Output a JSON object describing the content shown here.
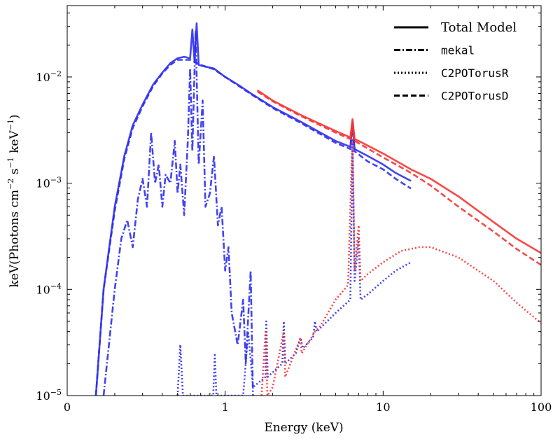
{
  "chart_data": {
    "type": "line",
    "xlabel": "Energy (keV)",
    "ylabel": "keV(Photons cm^-2 s^-1 keV^-1)",
    "xscale": "log",
    "yscale": "log",
    "xlim": [
      0.1,
      100
    ],
    "ylim": [
      1e-05,
      0.047
    ],
    "x_ticks": [
      {
        "value": 0.1,
        "label": "0"
      },
      {
        "value": 1,
        "label": "1"
      },
      {
        "value": 10,
        "label": "10"
      },
      {
        "value": 100,
        "label": "100"
      }
    ],
    "y_ticks": [
      {
        "value": 1e-05,
        "base": "10",
        "exp": "−5"
      },
      {
        "value": 0.0001,
        "base": "10",
        "exp": "−4"
      },
      {
        "value": 0.001,
        "base": "10",
        "exp": "−3"
      },
      {
        "value": 0.01,
        "base": "10",
        "exp": "−2"
      }
    ],
    "grid": false,
    "legend_placement": "top-right",
    "legend": [
      {
        "label": "Total Model",
        "style": "solid"
      },
      {
        "label": "mekal",
        "style": "dashdot"
      },
      {
        "label": "C2POTorusR",
        "style": "dotted"
      },
      {
        "label": "C2POTorusD",
        "style": "dashed"
      }
    ],
    "colors": {
      "blue": "#2f2ff0",
      "red": "#f53535"
    },
    "series": [
      {
        "component": "Total Model",
        "color": "blue",
        "style": "solid",
        "points": [
          [
            0.152,
            1e-05
          ],
          [
            0.17,
            0.0001
          ],
          [
            0.2,
            0.0006
          ],
          [
            0.23,
            0.0018
          ],
          [
            0.26,
            0.0035
          ],
          [
            0.3,
            0.0055
          ],
          [
            0.35,
            0.0085
          ],
          [
            0.4,
            0.011
          ],
          [
            0.45,
            0.0135
          ],
          [
            0.5,
            0.015
          ],
          [
            0.55,
            0.0155
          ],
          [
            0.6,
            0.015
          ],
          [
            0.62,
            0.028
          ],
          [
            0.64,
            0.014
          ],
          [
            0.66,
            0.032
          ],
          [
            0.68,
            0.013
          ],
          [
            0.75,
            0.0125
          ],
          [
            0.85,
            0.012
          ],
          [
            1.0,
            0.01
          ],
          [
            1.2,
            0.0085
          ],
          [
            1.5,
            0.0068
          ],
          [
            2,
            0.0052
          ],
          [
            3,
            0.0038
          ],
          [
            4,
            0.003
          ],
          [
            5,
            0.0025
          ],
          [
            6.2,
            0.0022
          ],
          [
            6.4,
            0.0038
          ],
          [
            6.6,
            0.0021
          ],
          [
            7,
            0.002
          ],
          [
            8,
            0.0018
          ],
          [
            10,
            0.0015
          ],
          [
            12,
            0.00125
          ],
          [
            15,
            0.00105
          ]
        ]
      },
      {
        "component": "C2POTorusD",
        "color": "blue",
        "style": "dashed",
        "points": [
          [
            0.152,
            1e-05
          ],
          [
            0.17,
            0.0001
          ],
          [
            0.2,
            0.00055
          ],
          [
            0.23,
            0.0017
          ],
          [
            0.26,
            0.0033
          ],
          [
            0.3,
            0.0053
          ],
          [
            0.35,
            0.0082
          ],
          [
            0.4,
            0.0108
          ],
          [
            0.45,
            0.013
          ],
          [
            0.5,
            0.0145
          ],
          [
            0.6,
            0.0145
          ],
          [
            0.7,
            0.013
          ],
          [
            0.85,
            0.0118
          ],
          [
            1.0,
            0.01
          ],
          [
            1.5,
            0.0067
          ],
          [
            2,
            0.0051
          ],
          [
            3,
            0.0037
          ],
          [
            5,
            0.0024
          ],
          [
            6.2,
            0.0021
          ],
          [
            6.4,
            0.0032
          ],
          [
            6.6,
            0.002
          ],
          [
            8,
            0.0016
          ],
          [
            10,
            0.00135
          ],
          [
            12,
            0.0011
          ],
          [
            15,
            0.00089
          ]
        ]
      },
      {
        "component": "mekal",
        "color": "blue",
        "style": "dashdot",
        "points": [
          [
            0.17,
            1e-05
          ],
          [
            0.2,
            0.0001
          ],
          [
            0.22,
            0.0003
          ],
          [
            0.24,
            0.00045
          ],
          [
            0.26,
            0.00025
          ],
          [
            0.28,
            0.0007
          ],
          [
            0.3,
            0.0011
          ],
          [
            0.32,
            0.0006
          ],
          [
            0.34,
            0.003
          ],
          [
            0.36,
            0.001
          ],
          [
            0.38,
            0.0015
          ],
          [
            0.4,
            0.0006
          ],
          [
            0.42,
            0.0012
          ],
          [
            0.45,
            0.001
          ],
          [
            0.48,
            0.0025
          ],
          [
            0.5,
            0.0008
          ],
          [
            0.52,
            0.0015
          ],
          [
            0.55,
            0.0005
          ],
          [
            0.58,
            0.0025
          ],
          [
            0.6,
            0.012
          ],
          [
            0.62,
            0.002
          ],
          [
            0.65,
            0.027
          ],
          [
            0.68,
            0.0015
          ],
          [
            0.72,
            0.006
          ],
          [
            0.75,
            0.0006
          ],
          [
            0.8,
            0.0008
          ],
          [
            0.85,
            0.0018
          ],
          [
            0.9,
            0.0004
          ],
          [
            0.95,
            0.0006
          ],
          [
            1.0,
            0.00015
          ],
          [
            1.05,
            0.00025
          ],
          [
            1.1,
            6e-05
          ],
          [
            1.2,
            3e-05
          ],
          [
            1.3,
            8e-05
          ],
          [
            1.35,
            2e-05
          ],
          [
            1.45,
            0.00015
          ],
          [
            1.5,
            1e-05
          ]
        ]
      },
      {
        "component": "C2POTorusR",
        "color": "blue",
        "style": "dotted",
        "points": [
          [
            0.5,
            1e-05
          ],
          [
            0.52,
            3e-05
          ],
          [
            0.54,
            1e-05
          ],
          [
            0.84,
            1e-05
          ],
          [
            0.86,
            2.5e-05
          ],
          [
            0.88,
            1e-05
          ],
          [
            1.3,
            1e-05
          ],
          [
            1.4,
            4e-05
          ],
          [
            1.5,
            1.2e-05
          ],
          [
            1.8,
            1.5e-05
          ],
          [
            1.82,
            5e-05
          ],
          [
            1.86,
            1.5e-05
          ],
          [
            2.3,
            2e-05
          ],
          [
            2.35,
            5e-05
          ],
          [
            2.4,
            2e-05
          ],
          [
            2.8,
            2.5e-05
          ],
          [
            3,
            3.5e-05
          ],
          [
            3.1,
            2.8e-05
          ],
          [
            3.6,
            3.5e-05
          ],
          [
            3.7,
            5e-05
          ],
          [
            3.8,
            4e-05
          ],
          [
            5,
            6e-05
          ],
          [
            6.2,
            8e-05
          ],
          [
            6.4,
            0.0025
          ],
          [
            6.6,
            0.00012
          ],
          [
            7,
            0.0003
          ],
          [
            7.2,
            8e-05
          ],
          [
            8,
            9e-05
          ],
          [
            10,
            0.00012
          ],
          [
            12,
            0.00015
          ],
          [
            15,
            0.00018
          ]
        ]
      },
      {
        "component": "Total Model",
        "color": "red",
        "style": "solid",
        "points": [
          [
            1.6,
            0.0075
          ],
          [
            2,
            0.006
          ],
          [
            3,
            0.0044
          ],
          [
            5,
            0.0031
          ],
          [
            6.2,
            0.0027
          ],
          [
            6.4,
            0.004
          ],
          [
            6.6,
            0.0026
          ],
          [
            7,
            0.0025
          ],
          [
            10,
            0.0019
          ],
          [
            15,
            0.00135
          ],
          [
            20,
            0.0011
          ],
          [
            30,
            0.00075
          ],
          [
            50,
            0.00043
          ],
          [
            70,
            0.0003
          ],
          [
            100,
            0.00022
          ]
        ]
      },
      {
        "component": "C2POTorusD",
        "color": "red",
        "style": "dashed",
        "points": [
          [
            1.6,
            0.0073
          ],
          [
            2,
            0.0059
          ],
          [
            3,
            0.0043
          ],
          [
            5,
            0.003
          ],
          [
            6.2,
            0.0026
          ],
          [
            6.4,
            0.0035
          ],
          [
            6.6,
            0.0025
          ],
          [
            10,
            0.00175
          ],
          [
            15,
            0.00125
          ],
          [
            20,
            0.00095
          ],
          [
            30,
            0.0006
          ],
          [
            50,
            0.00035
          ],
          [
            70,
            0.00024
          ],
          [
            100,
            0.00017
          ]
        ]
      },
      {
        "component": "C2POTorusR",
        "color": "red",
        "style": "dotted",
        "points": [
          [
            1.7,
            1e-05
          ],
          [
            1.8,
            4e-05
          ],
          [
            1.85,
            1e-05
          ],
          [
            2.0,
            1.2e-05
          ],
          [
            2.35,
            4e-05
          ],
          [
            2.4,
            1.5e-05
          ],
          [
            3,
            3.5e-05
          ],
          [
            3.05,
            2.5e-05
          ],
          [
            3.7,
            4e-05
          ],
          [
            4,
            4.5e-05
          ],
          [
            5,
            8e-05
          ],
          [
            6,
            0.00011
          ],
          [
            6.4,
            0.003
          ],
          [
            6.6,
            0.00015
          ],
          [
            7,
            0.0004
          ],
          [
            7.2,
            0.00012
          ],
          [
            8,
            0.00014
          ],
          [
            10,
            0.00018
          ],
          [
            13,
            0.00023
          ],
          [
            17,
            0.00025
          ],
          [
            20,
            0.00025
          ],
          [
            30,
            0.0002
          ],
          [
            50,
            0.00012
          ],
          [
            70,
            7.5e-05
          ],
          [
            100,
            4.8e-05
          ]
        ]
      }
    ]
  }
}
